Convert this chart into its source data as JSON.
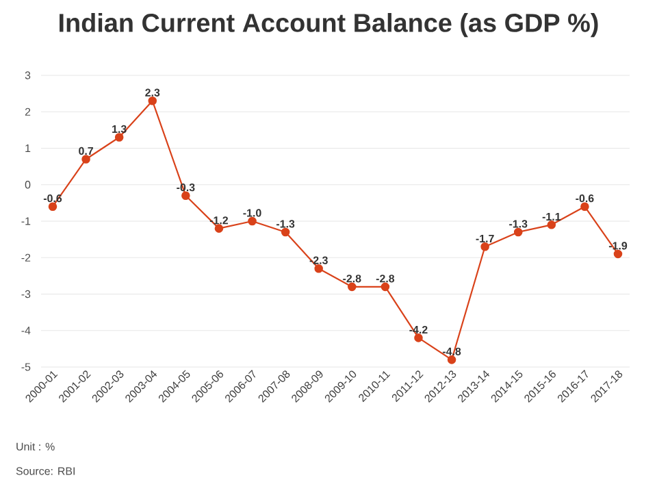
{
  "chart_data": {
    "type": "line",
    "title": "Indian Current Account Balance (as GDP %)",
    "categories": [
      "2000-01",
      "2001-02",
      "2002-03",
      "2003-04",
      "2004-05",
      "2005-06",
      "2006-07",
      "2007-08",
      "2008-09",
      "2009-10",
      "2010-11",
      "2011-12",
      "2012-13",
      "2013-14",
      "2014-15",
      "2015-16",
      "2016-17",
      "2017-18"
    ],
    "series": [
      {
        "color": "#d9421a",
        "values": [
          -0.6,
          0.7,
          1.3,
          2.3,
          -0.3,
          -1.2,
          -1.0,
          -1.3,
          -2.3,
          -2.8,
          -2.8,
          -4.2,
          -4.8,
          -1.7,
          -1.3,
          -1.1,
          -0.6,
          -1.9
        ],
        "value_labels": [
          "-0.6",
          "0.7",
          "1.3",
          "2.3",
          "-0.3",
          "-1.2",
          "-1.0",
          "-1.3",
          "-2.3",
          "-2.8",
          "-2.8",
          "-4.2",
          "-4.8",
          "-1.7",
          "-1.3",
          "-1.1",
          "-0.6",
          "-1.9"
        ]
      }
    ],
    "ylim": [
      -5,
      3
    ],
    "yticks": [
      -5,
      -4,
      -3,
      -2,
      -1,
      0,
      1,
      2,
      3
    ],
    "grid": "y",
    "marker": "circle",
    "line_style": "solid",
    "annotations": [
      "Unit : %",
      "Source: RBI"
    ]
  }
}
